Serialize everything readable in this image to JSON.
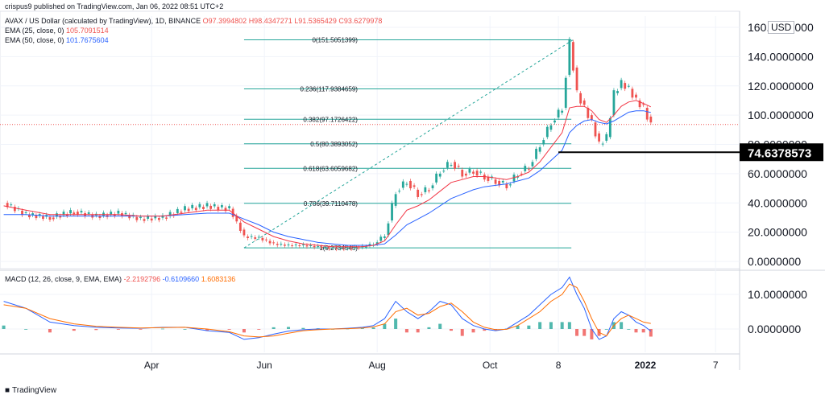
{
  "header": {
    "published": "crispus9 published on TradingView.com, Jan 06, 2022 08:51 UTC+2",
    "symbol_line": "AVAX / US Dollar (calculated by TradingView), 1D, BINANCE",
    "ohlc": {
      "o": "O97.3994802",
      "h": "H98.4347271",
      "l": "L91.5365429",
      "c": "C93.6279978"
    },
    "ema25": {
      "label": "EMA (25, close, 0)",
      "value": "105.7091514"
    },
    "ema50": {
      "label": "EMA (50, close, 0)",
      "value": "101.7675604"
    },
    "macd": {
      "label": "MACD (12, 26, close, 9, EMA, EMA)",
      "hist": "-2.2192796",
      "macd": "-0.6109660",
      "signal": "1.6083136"
    }
  },
  "currency_badge": "USD",
  "footer_logo": "TradingView",
  "chart_data": {
    "type": "line",
    "price_axis": {
      "ticks": [
        0,
        20,
        40,
        60,
        80,
        100,
        120,
        140,
        160
      ],
      "labels": [
        "0.0000000",
        "20.0000000",
        "40.0000000",
        "60.0000000",
        "80.0000000",
        "100.0000000",
        "120.0000000",
        "140.0000000",
        "160.0000000"
      ],
      "ylim": [
        0,
        160
      ]
    },
    "macd_axis": {
      "ticks": [
        0,
        10
      ],
      "labels": [
        "0.0000000",
        "10.0000000"
      ],
      "ylim": [
        -4,
        16
      ]
    },
    "time_axis": {
      "labels": [
        "Apr",
        "Jun",
        "Aug",
        "Oct",
        "8",
        "2022",
        "7"
      ],
      "positions_day": [
        80,
        141,
        202,
        263,
        300,
        347,
        385
      ]
    },
    "marked_price": {
      "value": 74.6378573,
      "label": "74.6378573"
    },
    "current_price": 93.6,
    "fibonacci": [
      {
        "label": "0(151.5051399)",
        "price": 151.51
      },
      {
        "label": "0.236(117.9384659)",
        "price": 117.94
      },
      {
        "label": "0.382(97.1726422)",
        "price": 97.17
      },
      {
        "label": "0.5(80.3893052)",
        "price": 80.39
      },
      {
        "label": "0.618(63.6059682)",
        "price": 63.61
      },
      {
        "label": "0.786(39.7110478)",
        "price": 39.71
      },
      {
        "label": "1(9.2734545)",
        "price": 9.27
      }
    ],
    "price_series": {
      "day": [
        0,
        12,
        25,
        38,
        50,
        62,
        74,
        86,
        98,
        110,
        122,
        130,
        138,
        146,
        154,
        162,
        170,
        178,
        186,
        194,
        200,
        206,
        212,
        218,
        224,
        230,
        236,
        242,
        248,
        254,
        260,
        266,
        272,
        278,
        284,
        290,
        296,
        302,
        306,
        310,
        314,
        318,
        322,
        326,
        330,
        334,
        338,
        342,
        346,
        350
      ],
      "close": [
        40,
        32,
        30,
        34,
        31,
        33,
        29,
        30,
        36,
        38,
        36,
        17,
        16,
        12,
        11,
        11,
        10,
        9,
        9,
        10,
        12,
        18,
        48,
        55,
        46,
        50,
        62,
        68,
        60,
        62,
        58,
        55,
        52,
        60,
        65,
        80,
        95,
        105,
        150,
        115,
        105,
        95,
        80,
        85,
        115,
        122,
        118,
        110,
        105,
        93
      ]
    },
    "ema25_series": [
      38,
      35,
      32,
      32,
      32,
      32,
      31,
      31,
      33,
      35,
      35,
      27,
      22,
      17,
      14,
      12,
      11,
      10,
      10,
      10,
      11,
      14,
      25,
      35,
      38,
      42,
      48,
      54,
      56,
      58,
      58,
      57,
      56,
      58,
      61,
      68,
      78,
      88,
      105,
      106,
      106,
      103,
      97,
      95,
      100,
      106,
      109,
      110,
      108,
      105.7
    ],
    "ema50_series": [
      32,
      32,
      31,
      31,
      31,
      31,
      31,
      31,
      32,
      33,
      33,
      29,
      25,
      20,
      17,
      15,
      13,
      12,
      11,
      11,
      11,
      12,
      18,
      25,
      29,
      33,
      38,
      43,
      46,
      49,
      51,
      52,
      53,
      55,
      57,
      62,
      69,
      76,
      88,
      93,
      96,
      97,
      95,
      94,
      96,
      99,
      102,
      103,
      103,
      101.8
    ],
    "macd_series": {
      "macd": [
        8,
        6,
        2,
        1,
        0.5,
        0.3,
        0.2,
        0.5,
        0.5,
        -0.5,
        -1,
        -3,
        -2.5,
        -1.5,
        -0.6,
        -0.2,
        0,
        0,
        0.2,
        0.5,
        1,
        3,
        8,
        5,
        3,
        5,
        8,
        7,
        3,
        1,
        0,
        -0.5,
        0,
        2,
        4,
        7,
        10,
        12,
        15,
        10,
        6,
        0,
        -3,
        -2,
        3,
        5,
        4,
        2,
        1,
        -0.6
      ],
      "signal": [
        7,
        6,
        3,
        1.5,
        0.8,
        0.5,
        0.3,
        0.4,
        0.5,
        0,
        -0.8,
        -2,
        -2.3,
        -2,
        -1.2,
        -0.5,
        -0.2,
        0,
        0.1,
        0.3,
        0.6,
        1.5,
        5,
        6,
        4,
        4.5,
        6.5,
        7.5,
        5,
        2,
        0.5,
        -0.2,
        -0.1,
        1,
        3,
        5,
        8,
        10,
        13,
        12,
        8,
        3,
        -1,
        -2,
        1,
        3,
        4,
        3,
        2,
        1.6
      ]
    }
  }
}
